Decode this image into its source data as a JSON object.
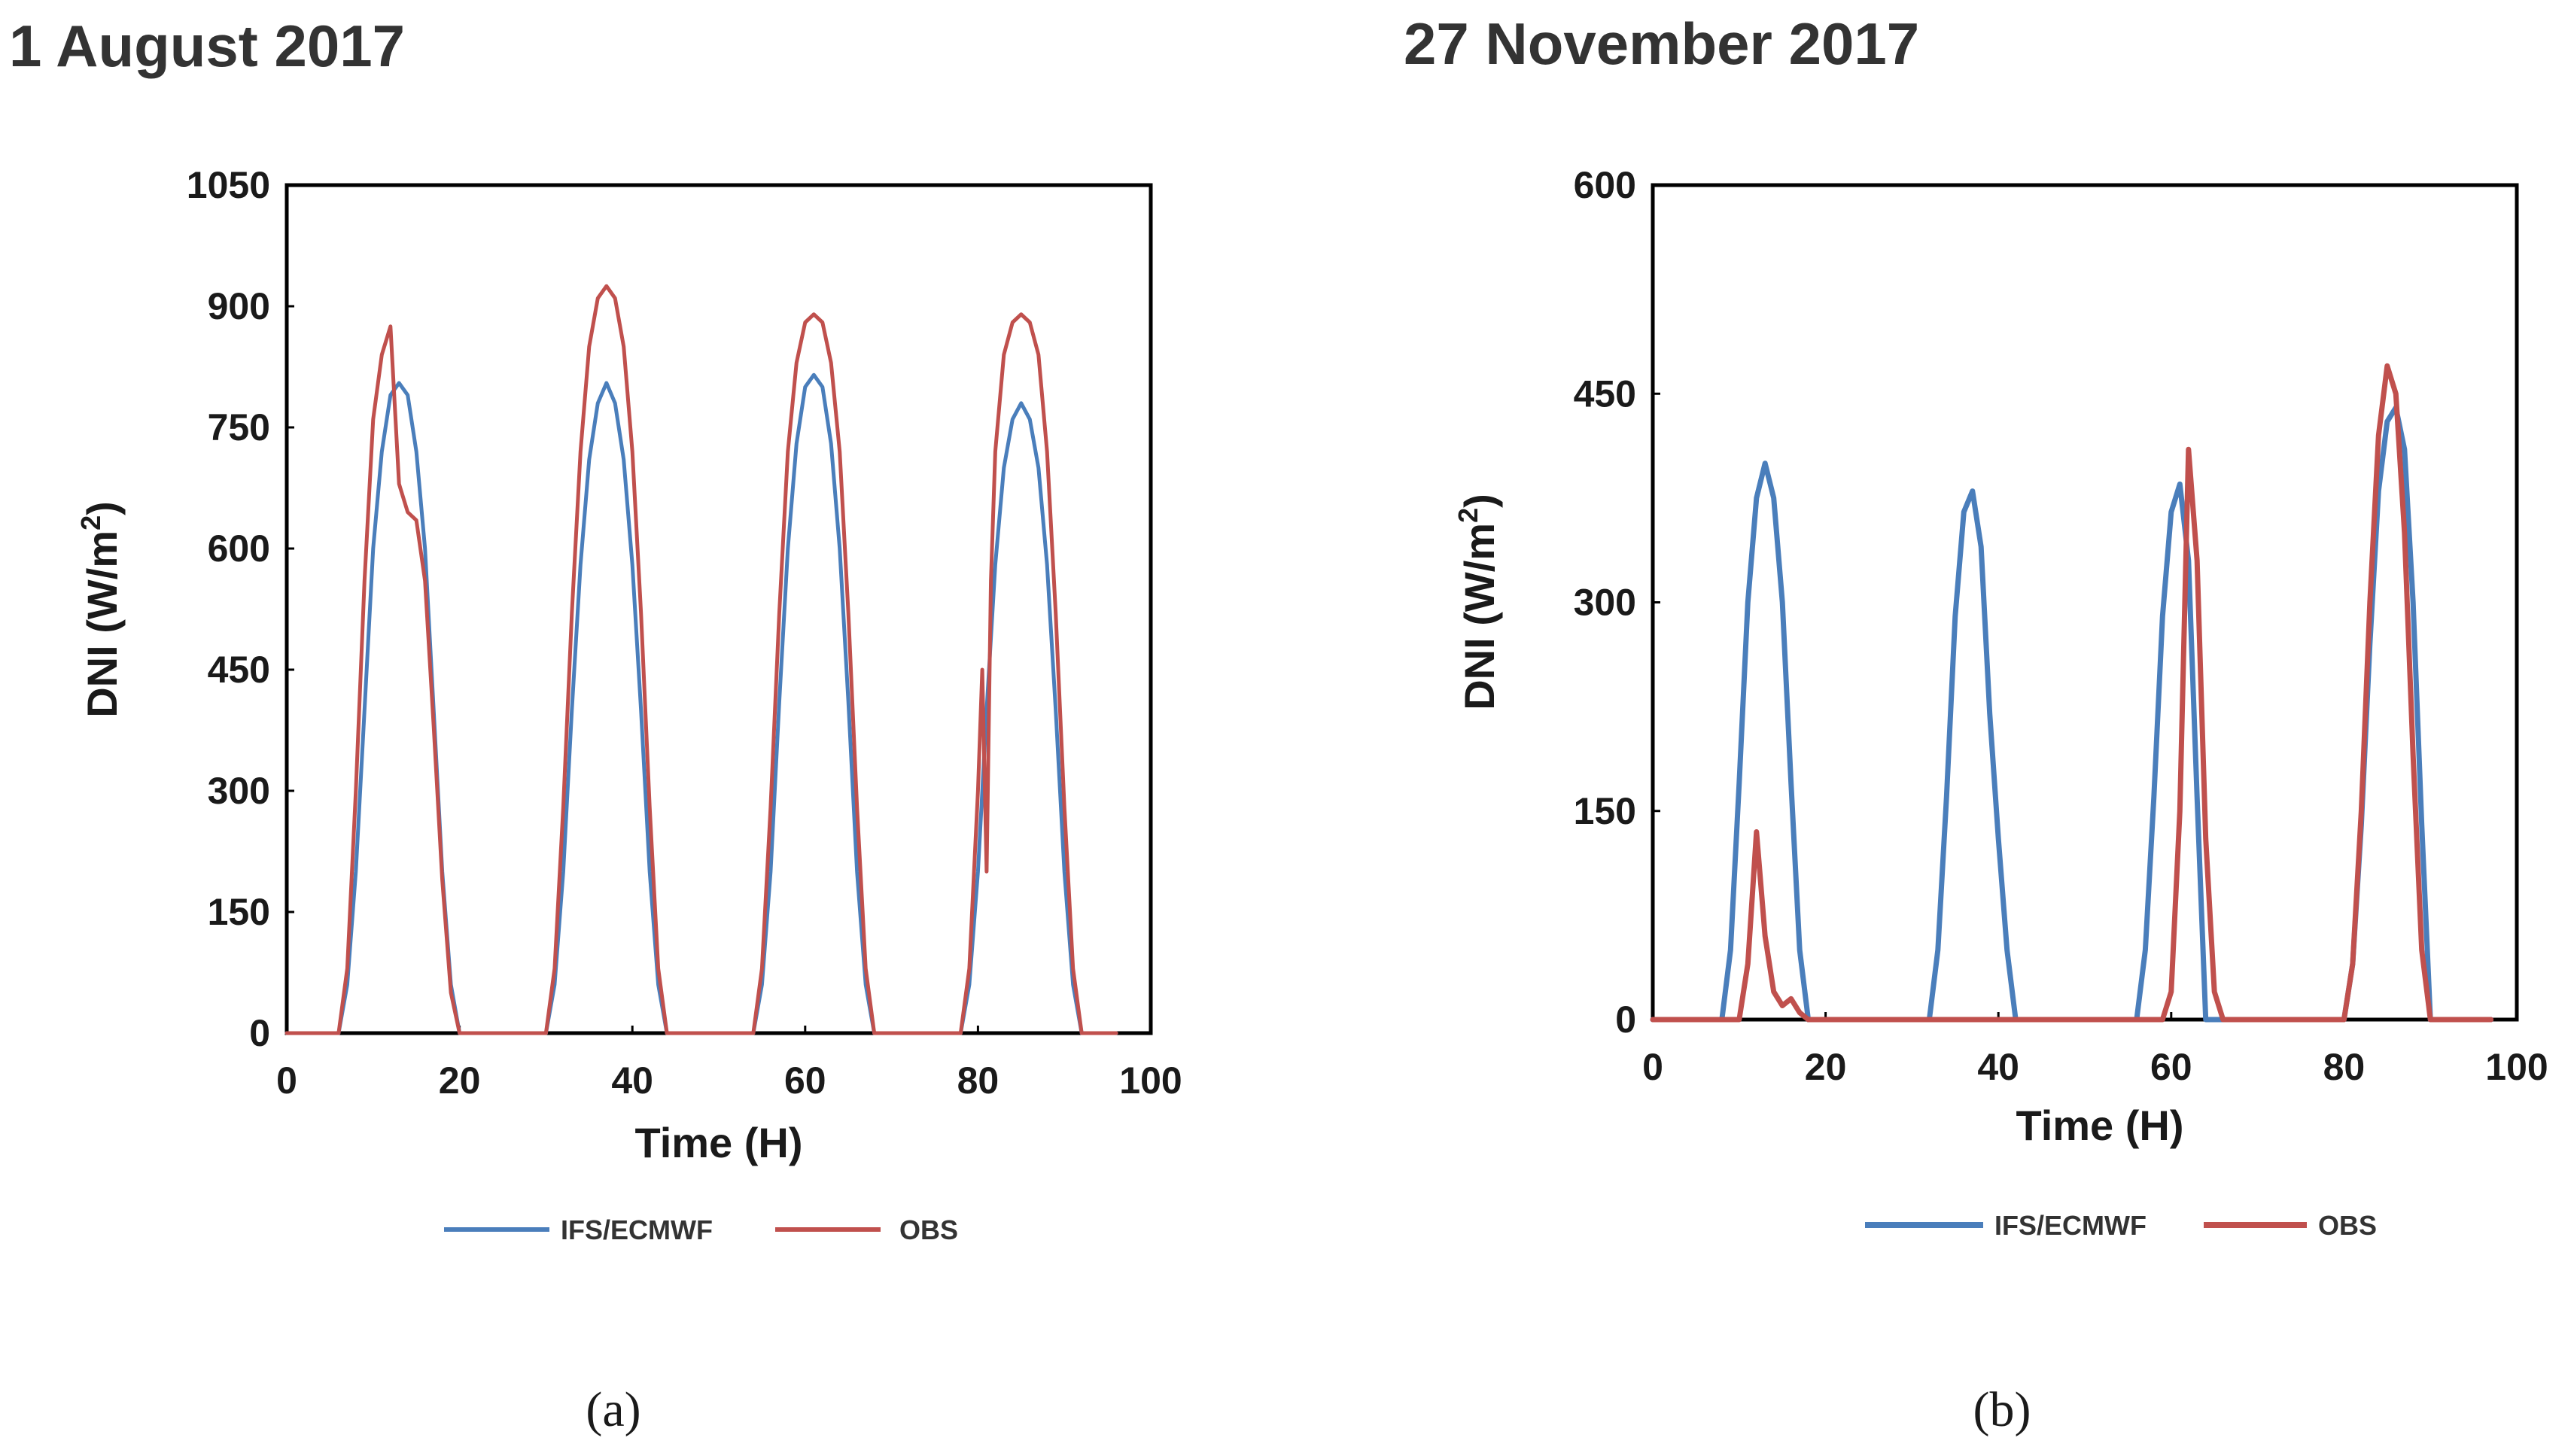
{
  "chart_data": [
    {
      "type": "line",
      "title": "1 August 2017",
      "caption": "(a)",
      "xlabel": "Time (H)",
      "ylabel": "DNI (W/m",
      "ylabel_sup": "2",
      "ylabel_close": ")",
      "xlim": [
        0,
        100
      ],
      "ylim": [
        0,
        1050
      ],
      "xticks": [
        0,
        20,
        40,
        60,
        80,
        100
      ],
      "yticks": [
        0,
        150,
        300,
        450,
        600,
        750,
        900,
        1050
      ],
      "legend_position": "bottom",
      "series": [
        {
          "name": "IFS/ECMWF",
          "color": "#4a7ebb",
          "x": [
            0,
            6,
            7,
            8,
            9,
            10,
            11,
            12,
            13,
            14,
            15,
            16,
            17,
            18,
            19,
            20,
            30,
            31,
            32,
            33,
            34,
            35,
            36,
            37,
            38,
            39,
            40,
            41,
            42,
            43,
            44,
            54,
            55,
            56,
            57,
            58,
            59,
            60,
            61,
            62,
            63,
            64,
            65,
            66,
            67,
            68,
            78,
            79,
            80,
            81,
            82,
            83,
            84,
            85,
            86,
            87,
            88,
            89,
            90,
            91,
            92,
            96
          ],
          "y": [
            0,
            0,
            60,
            200,
            400,
            600,
            720,
            790,
            805,
            790,
            720,
            600,
            400,
            200,
            60,
            0,
            0,
            60,
            200,
            400,
            580,
            710,
            780,
            805,
            780,
            710,
            580,
            400,
            200,
            60,
            0,
            0,
            60,
            200,
            410,
            600,
            730,
            800,
            815,
            800,
            730,
            600,
            410,
            200,
            60,
            0,
            0,
            60,
            200,
            400,
            580,
            700,
            760,
            780,
            760,
            700,
            580,
            400,
            200,
            60,
            0,
            0
          ]
        },
        {
          "name": "OBS",
          "color": "#c0504d",
          "x": [
            0,
            6,
            7,
            8,
            9,
            10,
            11,
            12,
            13,
            14,
            15,
            16,
            17,
            18,
            19,
            20,
            30,
            31,
            32,
            33,
            34,
            35,
            36,
            37,
            38,
            39,
            40,
            41,
            42,
            43,
            44,
            54,
            55,
            56,
            57,
            58,
            59,
            60,
            61,
            62,
            63,
            64,
            65,
            66,
            67,
            68,
            78,
            79,
            80,
            80.5,
            81,
            81.5,
            82,
            83,
            84,
            85,
            86,
            87,
            88,
            89,
            90,
            91,
            92,
            96
          ],
          "y": [
            0,
            0,
            80,
            300,
            560,
            760,
            840,
            875,
            680,
            645,
            635,
            560,
            380,
            190,
            50,
            0,
            0,
            80,
            280,
            520,
            720,
            850,
            910,
            925,
            910,
            850,
            720,
            520,
            280,
            80,
            0,
            0,
            80,
            280,
            520,
            720,
            830,
            880,
            890,
            880,
            830,
            720,
            520,
            280,
            80,
            0,
            0,
            80,
            300,
            450,
            200,
            560,
            720,
            840,
            880,
            890,
            880,
            840,
            720,
            520,
            280,
            80,
            0,
            0
          ]
        }
      ]
    },
    {
      "type": "line",
      "title": "27 November 2017",
      "caption": "(b)",
      "xlabel": "Time (H)",
      "ylabel": "DNI (W/m",
      "ylabel_sup": "2",
      "ylabel_close": ")",
      "xlim": [
        0,
        100
      ],
      "ylim": [
        0,
        600
      ],
      "xticks": [
        0,
        20,
        40,
        60,
        80,
        100
      ],
      "yticks": [
        0,
        150,
        300,
        450,
        600
      ],
      "legend_position": "bottom",
      "series": [
        {
          "name": "IFS/ECMWF",
          "color": "#4a7ebb",
          "x": [
            0,
            8,
            9,
            10,
            11,
            12,
            13,
            14,
            15,
            16,
            17,
            18,
            32,
            33,
            34,
            35,
            36,
            37,
            38,
            39,
            40,
            41,
            42,
            56,
            57,
            58,
            59,
            60,
            61,
            62,
            63,
            64,
            80,
            81,
            82,
            83,
            84,
            85,
            86,
            87,
            88,
            89,
            90,
            97
          ],
          "y": [
            0,
            0,
            50,
            170,
            300,
            375,
            400,
            375,
            300,
            170,
            50,
            0,
            0,
            50,
            160,
            290,
            365,
            380,
            340,
            220,
            130,
            50,
            0,
            0,
            50,
            160,
            290,
            365,
            385,
            330,
            160,
            0,
            0,
            40,
            140,
            270,
            380,
            430,
            440,
            410,
            300,
            140,
            0,
            0
          ]
        },
        {
          "name": "OBS",
          "color": "#c0504d",
          "x": [
            0,
            10,
            11,
            12,
            13,
            14,
            15,
            16,
            17,
            18,
            59,
            60,
            61,
            62,
            63,
            64,
            65,
            66,
            80,
            81,
            82,
            83,
            84,
            85,
            86,
            87,
            88,
            89,
            90,
            97
          ],
          "y": [
            0,
            0,
            40,
            135,
            60,
            20,
            10,
            15,
            5,
            0,
            0,
            20,
            150,
            410,
            330,
            130,
            20,
            0,
            0,
            40,
            150,
            300,
            420,
            470,
            450,
            350,
            190,
            50,
            0,
            0
          ]
        }
      ]
    }
  ]
}
